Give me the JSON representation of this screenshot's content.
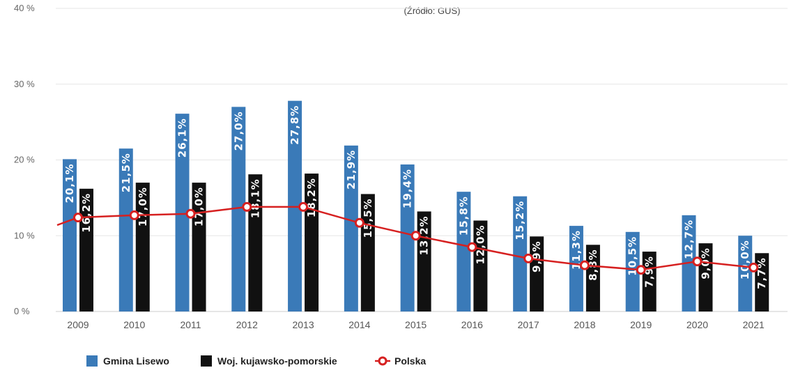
{
  "source": "(Źródło: GUS)",
  "colors": {
    "gmina": "#3a7ab8",
    "woj": "#111111",
    "polska": "#d62020",
    "grid": "#e6e6e6"
  },
  "chart_data": {
    "type": "bar",
    "categories": [
      "2009",
      "2010",
      "2011",
      "2012",
      "2013",
      "2014",
      "2015",
      "2016",
      "2017",
      "2018",
      "2019",
      "2020",
      "2021"
    ],
    "ylim": [
      0,
      40
    ],
    "yticks": [
      0,
      10,
      20,
      30,
      40
    ],
    "ytick_labels": [
      "0 %",
      "10 %",
      "20 %",
      "30 %",
      "40 %"
    ],
    "grid": true,
    "legend_position": "bottom-left",
    "series": [
      {
        "name": "Gmina Lisewo",
        "kind": "bar",
        "values": [
          20.1,
          21.5,
          26.1,
          27.0,
          27.8,
          21.9,
          19.4,
          15.8,
          15.2,
          11.3,
          10.5,
          12.7,
          10.0
        ],
        "labels": [
          "20,1%",
          "21,5%",
          "26,1%",
          "27,0%",
          "27,8%",
          "21,9%",
          "19,4%",
          "15,8%",
          "15,2%",
          "11,3%",
          "10,5%",
          "12,7%",
          "10,0%"
        ]
      },
      {
        "name": "Woj. kujawsko-pomorskie",
        "kind": "bar",
        "values": [
          16.2,
          17.0,
          17.0,
          18.1,
          18.2,
          15.5,
          13.2,
          12.0,
          9.9,
          8.8,
          7.9,
          9.0,
          7.7
        ],
        "labels": [
          "16,2%",
          "17,0%",
          "17,0%",
          "18,1%",
          "18,2%",
          "15,5%",
          "13,2%",
          "12,0%",
          "9,9%",
          "8,8%",
          "7,9%",
          "9,0%",
          "7,7%"
        ]
      },
      {
        "name": "Polska",
        "kind": "line",
        "values": [
          12.4,
          12.7,
          12.9,
          13.8,
          13.8,
          11.7,
          10.0,
          8.5,
          7.0,
          6.1,
          5.5,
          6.6,
          5.8
        ]
      }
    ]
  }
}
